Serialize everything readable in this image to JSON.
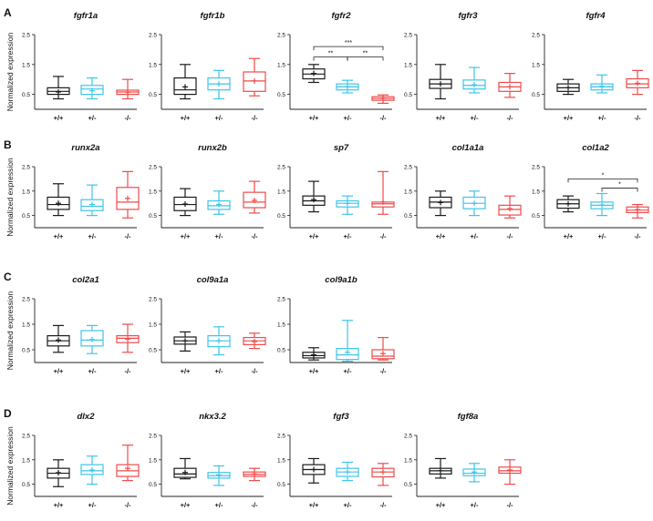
{
  "colors": {
    "wt": "#1a1a1a",
    "het": "#3ec5e8",
    "mut": "#ee4b4b"
  },
  "y_axis": {
    "label": "Normalized expression",
    "ticks": [
      "2.5",
      "1.5",
      "0.5"
    ],
    "ylim": [
      0,
      2.5
    ]
  },
  "groups": [
    "+/+",
    "+/-",
    "-/-"
  ],
  "panels": [
    {
      "letter": "A",
      "genes": [
        {
          "name": "fgfr1a",
          "boxes": [
            {
              "min": 0.35,
              "q1": 0.5,
              "median": 0.6,
              "q3": 0.72,
              "max": 1.1,
              "mean": 0.58
            },
            {
              "min": 0.35,
              "q1": 0.5,
              "median": 0.68,
              "q3": 0.8,
              "max": 1.05,
              "mean": 0.62
            },
            {
              "min": 0.35,
              "q1": 0.5,
              "median": 0.58,
              "q3": 0.64,
              "max": 1.0,
              "mean": 0.57
            }
          ],
          "sig": []
        },
        {
          "name": "fgfr1b",
          "boxes": [
            {
              "min": 0.35,
              "q1": 0.5,
              "median": 0.65,
              "q3": 1.05,
              "max": 1.5,
              "mean": 0.75
            },
            {
              "min": 0.35,
              "q1": 0.65,
              "median": 0.85,
              "q3": 1.05,
              "max": 1.3,
              "mean": 0.85
            },
            {
              "min": 0.45,
              "q1": 0.6,
              "median": 0.95,
              "q3": 1.25,
              "max": 1.7,
              "mean": 0.95
            }
          ],
          "sig": []
        },
        {
          "name": "fgfr2",
          "boxes": [
            {
              "min": 0.9,
              "q1": 1.02,
              "median": 1.18,
              "q3": 1.35,
              "max": 1.5,
              "mean": 1.2
            },
            {
              "min": 0.55,
              "q1": 0.65,
              "median": 0.75,
              "q3": 0.85,
              "max": 0.97,
              "mean": 0.76
            },
            {
              "min": 0.2,
              "q1": 0.3,
              "median": 0.36,
              "q3": 0.42,
              "max": 0.48,
              "mean": 0.36
            }
          ],
          "sig": [
            {
              "from": 0,
              "to": 2,
              "label": "***",
              "y": 2.1
            },
            {
              "from": 0,
              "to": 1,
              "label": "**",
              "y": 1.75
            },
            {
              "from": 1,
              "to": 2,
              "label": "**",
              "y": 1.75
            }
          ]
        },
        {
          "name": "fgfr3",
          "boxes": [
            {
              "min": 0.35,
              "q1": 0.7,
              "median": 0.85,
              "q3": 1.0,
              "max": 1.5,
              "mean": 0.85
            },
            {
              "min": 0.55,
              "q1": 0.68,
              "median": 0.8,
              "q3": 0.98,
              "max": 1.4,
              "mean": 0.82
            },
            {
              "min": 0.4,
              "q1": 0.6,
              "median": 0.75,
              "q3": 0.9,
              "max": 1.2,
              "mean": 0.75
            }
          ],
          "sig": []
        },
        {
          "name": "fgfr4",
          "boxes": [
            {
              "min": 0.5,
              "q1": 0.6,
              "median": 0.72,
              "q3": 0.85,
              "max": 1.0,
              "mean": 0.72
            },
            {
              "min": 0.55,
              "q1": 0.65,
              "median": 0.75,
              "q3": 0.85,
              "max": 1.15,
              "mean": 0.77
            },
            {
              "min": 0.5,
              "q1": 0.72,
              "median": 0.85,
              "q3": 1.02,
              "max": 1.3,
              "mean": 0.87
            }
          ],
          "sig": []
        }
      ]
    },
    {
      "letter": "B",
      "genes": [
        {
          "name": "runx2a",
          "boxes": [
            {
              "min": 0.5,
              "q1": 0.75,
              "median": 0.95,
              "q3": 1.25,
              "max": 1.8,
              "mean": 1.0
            },
            {
              "min": 0.5,
              "q1": 0.7,
              "median": 0.88,
              "q3": 1.15,
              "max": 1.75,
              "mean": 0.95
            },
            {
              "min": 0.4,
              "q1": 0.75,
              "median": 1.05,
              "q3": 1.65,
              "max": 2.3,
              "mean": 1.2
            }
          ],
          "sig": []
        },
        {
          "name": "runx2b",
          "boxes": [
            {
              "min": 0.5,
              "q1": 0.7,
              "median": 0.95,
              "q3": 1.25,
              "max": 1.6,
              "mean": 0.97
            },
            {
              "min": 0.55,
              "q1": 0.75,
              "median": 0.9,
              "q3": 1.1,
              "max": 1.5,
              "mean": 0.95
            },
            {
              "min": 0.6,
              "q1": 0.82,
              "median": 1.05,
              "q3": 1.45,
              "max": 1.9,
              "mean": 1.12
            }
          ],
          "sig": []
        },
        {
          "name": "sp7",
          "boxes": [
            {
              "min": 0.65,
              "q1": 0.92,
              "median": 1.1,
              "q3": 1.3,
              "max": 1.9,
              "mean": 1.15
            },
            {
              "min": 0.55,
              "q1": 0.85,
              "median": 1.0,
              "q3": 1.1,
              "max": 1.3,
              "mean": 1.0
            },
            {
              "min": 0.55,
              "q1": 0.85,
              "median": 0.98,
              "q3": 1.05,
              "max": 2.3,
              "mean": 1.05
            }
          ],
          "sig": []
        },
        {
          "name": "col1a1a",
          "boxes": [
            {
              "min": 0.5,
              "q1": 0.82,
              "median": 1.05,
              "q3": 1.25,
              "max": 1.5,
              "mean": 1.03
            },
            {
              "min": 0.5,
              "q1": 0.78,
              "median": 1.0,
              "q3": 1.25,
              "max": 1.5,
              "mean": 1.0
            },
            {
              "min": 0.4,
              "q1": 0.52,
              "median": 0.75,
              "q3": 0.92,
              "max": 1.3,
              "mean": 0.78
            }
          ],
          "sig": []
        },
        {
          "name": "col1a2",
          "boxes": [
            {
              "min": 0.65,
              "q1": 0.8,
              "median": 0.98,
              "q3": 1.15,
              "max": 1.3,
              "mean": 0.98
            },
            {
              "min": 0.5,
              "q1": 0.78,
              "median": 0.92,
              "q3": 1.05,
              "max": 1.4,
              "mean": 0.93
            },
            {
              "min": 0.4,
              "q1": 0.62,
              "median": 0.72,
              "q3": 0.85,
              "max": 0.95,
              "mean": 0.74
            }
          ],
          "sig": [
            {
              "from": 0,
              "to": 2,
              "label": "*",
              "y": 2.0
            },
            {
              "from": 1,
              "to": 2,
              "label": "*",
              "y": 1.62
            }
          ]
        }
      ]
    },
    {
      "letter": "C",
      "genes": [
        {
          "name": "col2a1",
          "boxes": [
            {
              "min": 0.4,
              "q1": 0.65,
              "median": 0.85,
              "q3": 1.05,
              "max": 1.45,
              "mean": 0.88
            },
            {
              "min": 0.35,
              "q1": 0.65,
              "median": 0.88,
              "q3": 1.25,
              "max": 1.45,
              "mean": 0.9
            },
            {
              "min": 0.4,
              "q1": 0.78,
              "median": 0.95,
              "q3": 1.05,
              "max": 1.5,
              "mean": 0.92
            }
          ],
          "sig": []
        },
        {
          "name": "col9a1a",
          "boxes": [
            {
              "min": 0.45,
              "q1": 0.72,
              "median": 0.85,
              "q3": 1.0,
              "max": 1.2,
              "mean": 0.85
            },
            {
              "min": 0.3,
              "q1": 0.62,
              "median": 0.85,
              "q3": 1.05,
              "max": 1.4,
              "mean": 0.85
            },
            {
              "min": 0.55,
              "q1": 0.7,
              "median": 0.85,
              "q3": 0.98,
              "max": 1.15,
              "mean": 0.82
            }
          ],
          "sig": []
        },
        {
          "name": "col9a1b",
          "boxes": [
            {
              "min": 0.1,
              "q1": 0.18,
              "median": 0.27,
              "q3": 0.4,
              "max": 0.58,
              "mean": 0.3
            },
            {
              "min": 0.05,
              "q1": 0.12,
              "median": 0.3,
              "q3": 0.55,
              "max": 1.65,
              "mean": 0.4
            },
            {
              "min": 0.1,
              "q1": 0.15,
              "median": 0.25,
              "q3": 0.5,
              "max": 0.98,
              "mean": 0.35
            }
          ],
          "sig": []
        }
      ]
    },
    {
      "letter": "D",
      "genes": [
        {
          "name": "dlx2",
          "boxes": [
            {
              "min": 0.4,
              "q1": 0.75,
              "median": 0.95,
              "q3": 1.15,
              "max": 1.5,
              "mean": 0.97
            },
            {
              "min": 0.5,
              "q1": 0.9,
              "median": 1.05,
              "q3": 1.3,
              "max": 1.65,
              "mean": 1.08
            },
            {
              "min": 0.65,
              "q1": 0.82,
              "median": 1.05,
              "q3": 1.3,
              "max": 2.1,
              "mean": 1.15
            }
          ],
          "sig": []
        },
        {
          "name": "nkx3.2",
          "boxes": [
            {
              "min": 0.72,
              "q1": 0.78,
              "median": 0.92,
              "q3": 1.15,
              "max": 1.55,
              "mean": 0.98
            },
            {
              "min": 0.45,
              "q1": 0.75,
              "median": 0.85,
              "q3": 0.98,
              "max": 1.25,
              "mean": 0.88
            },
            {
              "min": 0.65,
              "q1": 0.82,
              "median": 0.9,
              "q3": 1.0,
              "max": 1.15,
              "mean": 0.92
            }
          ],
          "sig": []
        },
        {
          "name": "fgf3",
          "boxes": [
            {
              "min": 0.55,
              "q1": 0.9,
              "median": 1.1,
              "q3": 1.3,
              "max": 1.55,
              "mean": 1.1
            },
            {
              "min": 0.65,
              "q1": 0.82,
              "median": 1.0,
              "q3": 1.15,
              "max": 1.4,
              "mean": 1.0
            },
            {
              "min": 0.45,
              "q1": 0.8,
              "median": 1.0,
              "q3": 1.15,
              "max": 1.35,
              "mean": 1.0
            }
          ],
          "sig": []
        },
        {
          "name": "fgf8a",
          "boxes": [
            {
              "min": 0.75,
              "q1": 0.92,
              "median": 1.05,
              "q3": 1.15,
              "max": 1.55,
              "mean": 1.05
            },
            {
              "min": 0.6,
              "q1": 0.85,
              "median": 0.95,
              "q3": 1.12,
              "max": 1.35,
              "mean": 1.0
            },
            {
              "min": 0.5,
              "q1": 0.95,
              "median": 1.05,
              "q3": 1.2,
              "max": 1.5,
              "mean": 1.08
            }
          ],
          "sig": []
        }
      ]
    }
  ],
  "chart_data": {
    "type": "box",
    "ylabel": "Normalized expression",
    "ylim": [
      0,
      2.5
    ],
    "y_ticks": [
      0.5,
      1.5,
      2.5
    ],
    "categories": [
      "+/+",
      "+/-",
      "-/-"
    ],
    "grid": false,
    "note": "values are in #page-data.panels"
  }
}
